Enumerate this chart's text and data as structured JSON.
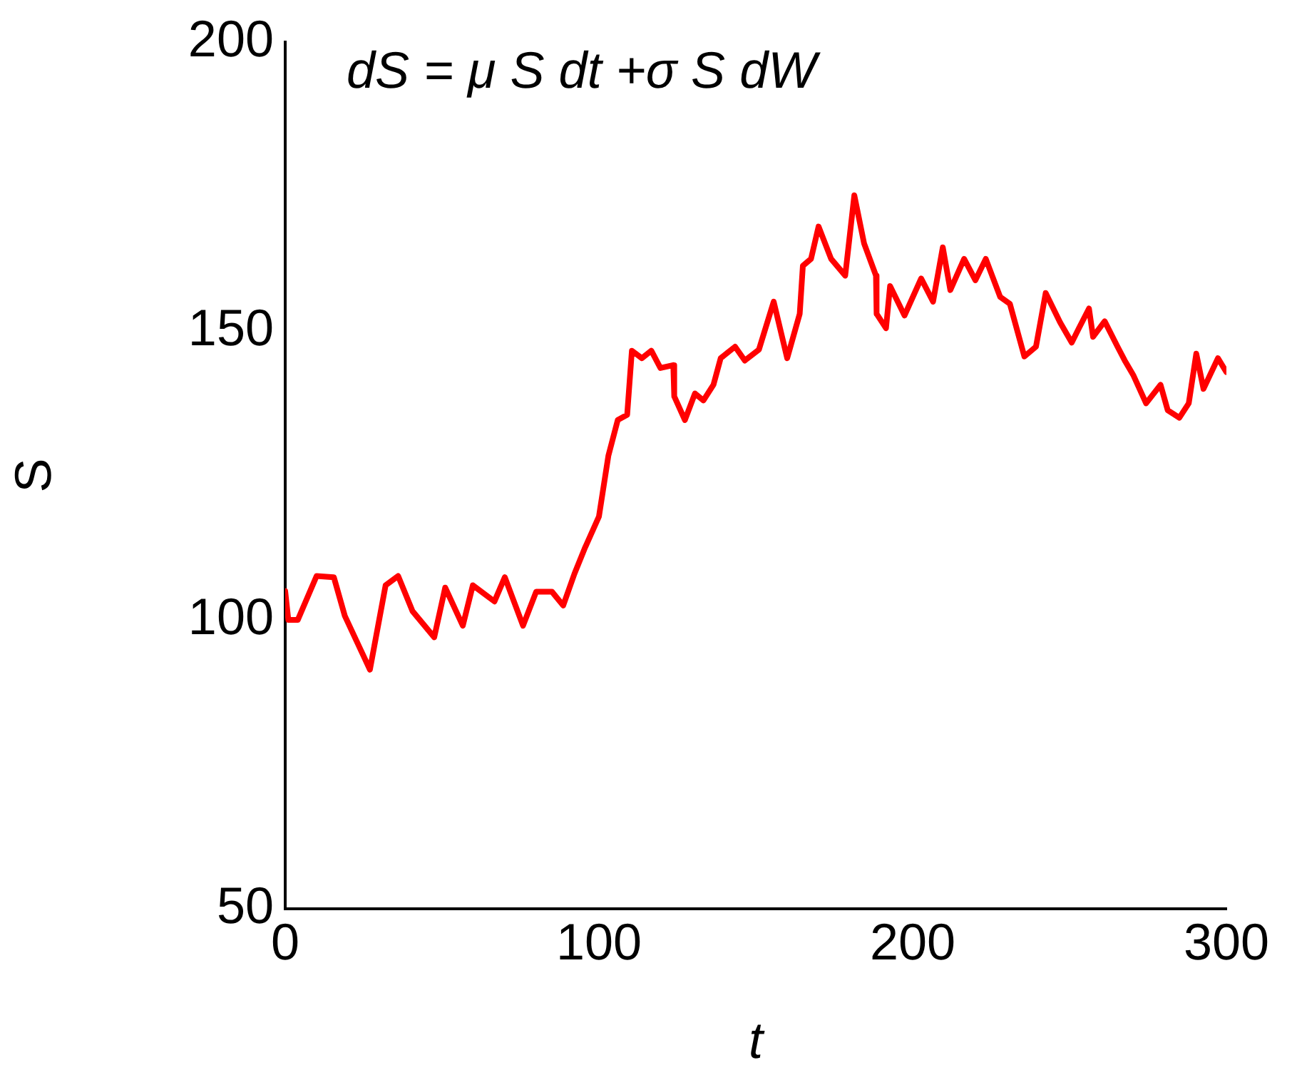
{
  "chart_data": {
    "type": "line",
    "xlabel": "t",
    "ylabel": "S",
    "annotations": [
      "dS = μ S dt +σ S dW"
    ],
    "xlim": [
      0,
      300
    ],
    "xticks": [
      0,
      100,
      200,
      300
    ],
    "ylim": [
      50,
      200
    ],
    "yticks": [
      50,
      100,
      150,
      200
    ],
    "grid": false,
    "legend": false,
    "marker": "none",
    "line_style": "solid",
    "series": [
      {
        "color": "#ff0000",
        "x": [
          0,
          1,
          4,
          10,
          15.5,
          19,
          27,
          32,
          36,
          40.6,
          47.5,
          51,
          56.6,
          59.8,
          66.7,
          70,
          75.8,
          80,
          85,
          88.6,
          92.2,
          95.4,
          100,
          103,
          106,
          109,
          110.5,
          113.7,
          116.7,
          119.6,
          123.7,
          124,
          127.4,
          130.6,
          133.3,
          136.5,
          138.8,
          143.4,
          146.5,
          151,
          155.7,
          160,
          164,
          165,
          167.6,
          170,
          174,
          178.5,
          181.4,
          184.5,
          188.3,
          188.5,
          191.5,
          192.8,
          197.4,
          202.7,
          206.5,
          209.6,
          212,
          216.4,
          220,
          223.3,
          227.9,
          231,
          235.6,
          239.3,
          242.4,
          247,
          250.7,
          253,
          256.2,
          257.5,
          261.2,
          265.3,
          267.6,
          270.3,
          274.4,
          279,
          281.3,
          285,
          288,
          290.4,
          292.7,
          297.3,
          300
        ],
        "values": [
          105,
          100,
          100,
          107.6,
          107.4,
          100.7,
          91.4,
          106,
          107.6,
          101.5,
          97,
          105.6,
          99,
          106,
          103.2,
          107.4,
          99,
          104.9,
          104.9,
          102.5,
          108,
          112.3,
          117.9,
          128.4,
          134.6,
          135.5,
          146.6,
          145.3,
          146.6,
          143.6,
          144.1,
          138.7,
          134.6,
          139.2,
          138,
          140.7,
          145.3,
          147.3,
          144.9,
          146.8,
          155.1,
          145.3,
          153,
          161.3,
          162.5,
          168.1,
          162.5,
          159.6,
          173.5,
          165.2,
          159.6,
          153,
          150.5,
          157.8,
          152.7,
          159.1,
          155.1,
          164.5,
          157.1,
          162.5,
          158.8,
          162.5,
          155.9,
          154.7,
          145.6,
          147.3,
          156.6,
          151.5,
          148,
          150.5,
          153.9,
          149,
          151.7,
          147.3,
          144.9,
          142.4,
          137.5,
          140.7,
          136.3,
          135,
          137.5,
          146.1,
          140,
          145.3,
          142.9
        ]
      }
    ]
  }
}
